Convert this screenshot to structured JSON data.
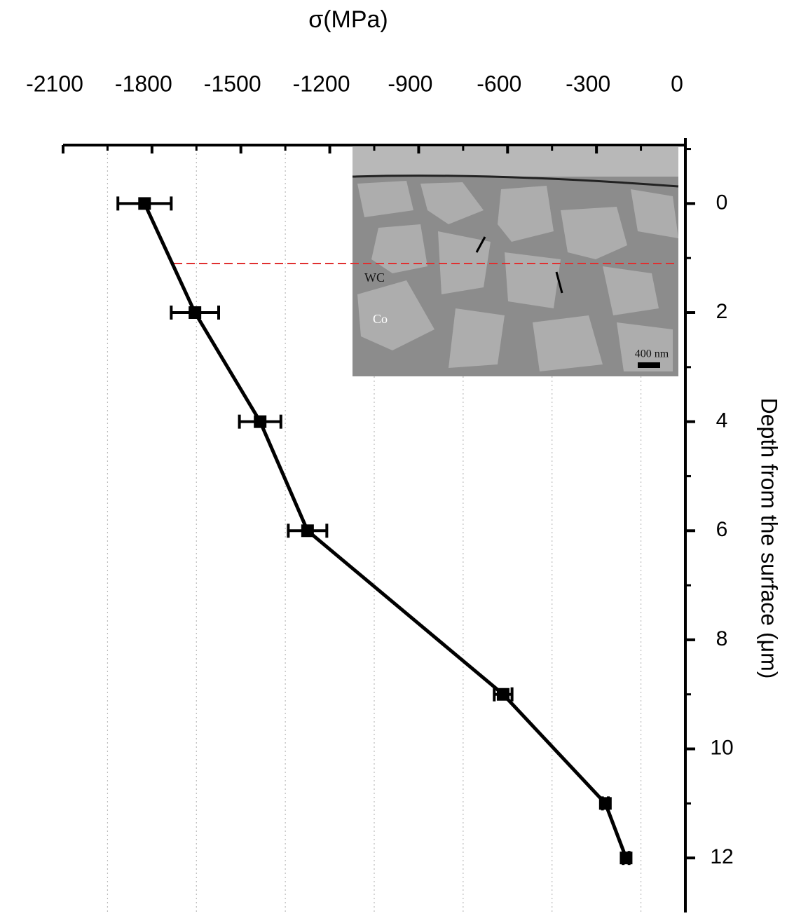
{
  "chart_data": {
    "type": "line",
    "title": "σ(MPa)",
    "x_label": "Depth from the surface (μm)",
    "x": [
      0,
      2,
      4,
      6,
      9,
      11,
      12
    ],
    "xlim": [
      -1.2,
      13
    ],
    "xticks": [
      0,
      2,
      4,
      6,
      8,
      10,
      12
    ],
    "ylim": [
      -2100,
      0
    ],
    "yticks": [
      -2100,
      -1800,
      -1500,
      -1200,
      -900,
      -600,
      -300,
      0
    ],
    "grid": true,
    "series": [
      {
        "color": "#000000",
        "values": [
          -1825,
          -1655,
          -1435,
          -1275,
          -615,
          -270,
          -200
        ],
        "errors": [
          90,
          80,
          70,
          65,
          30,
          10,
          10
        ]
      }
    ],
    "reference_line": {
      "x": 1.1,
      "color": "#e03030"
    },
    "inset": {
      "labels": [
        "WC",
        "Co"
      ],
      "scale_bar": "400 nm"
    }
  }
}
